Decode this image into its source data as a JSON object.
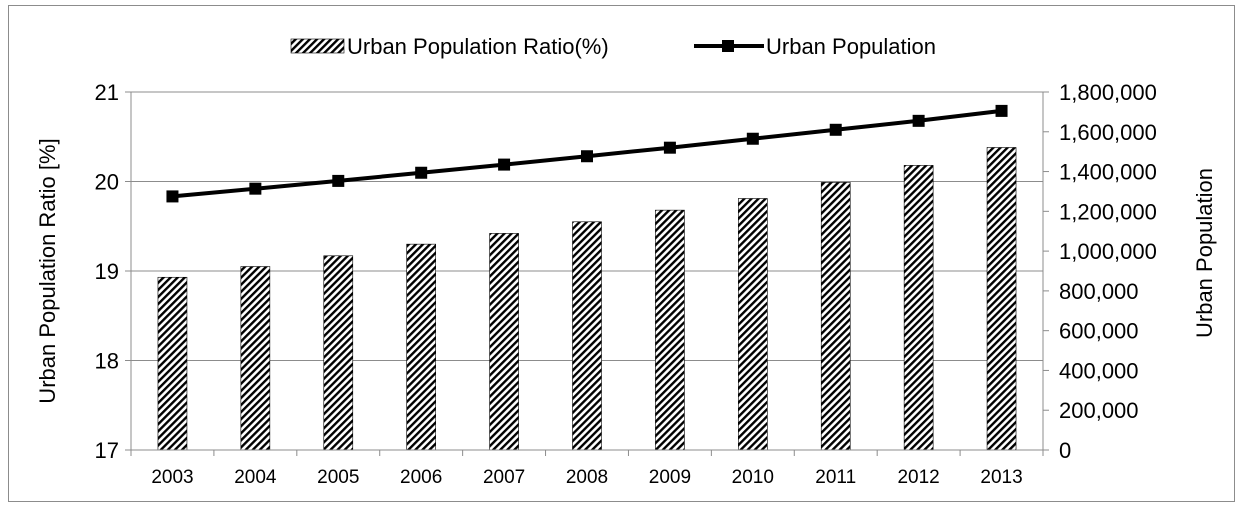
{
  "chart_data": {
    "type": "bar",
    "categories": [
      "2003",
      "2004",
      "2005",
      "2006",
      "2007",
      "2008",
      "2009",
      "2010",
      "2011",
      "2012",
      "2013"
    ],
    "series": [
      {
        "name": "Urban Population Ratio(%)",
        "type": "bar",
        "axis": "left",
        "values": [
          18.93,
          19.05,
          19.17,
          19.3,
          19.42,
          19.55,
          19.68,
          19.81,
          19.99,
          20.18,
          20.38
        ]
      },
      {
        "name": "Urban Population",
        "type": "line",
        "axis": "right",
        "values": [
          1275000,
          1314000,
          1353000,
          1394000,
          1435000,
          1477000,
          1520000,
          1565000,
          1610000,
          1655000,
          1705000
        ]
      }
    ],
    "ylabel": "Urban Population Ratio [%]",
    "y2label": "Urban Population",
    "ylim": [
      17,
      21
    ],
    "y2lim": [
      0,
      1800000
    ],
    "yticks": [
      "17",
      "18",
      "19",
      "20",
      "21"
    ],
    "y2ticks": [
      "0",
      "200,000",
      "400,000",
      "600,000",
      "800,000",
      "1,000,000",
      "1,200,000",
      "1,400,000",
      "1,600,000",
      "1,800,000"
    ],
    "grid": true,
    "legend_position": "top",
    "colors": {
      "line": "#000000",
      "bar_stroke": "#000000",
      "grid": "#8c8c8c"
    }
  }
}
